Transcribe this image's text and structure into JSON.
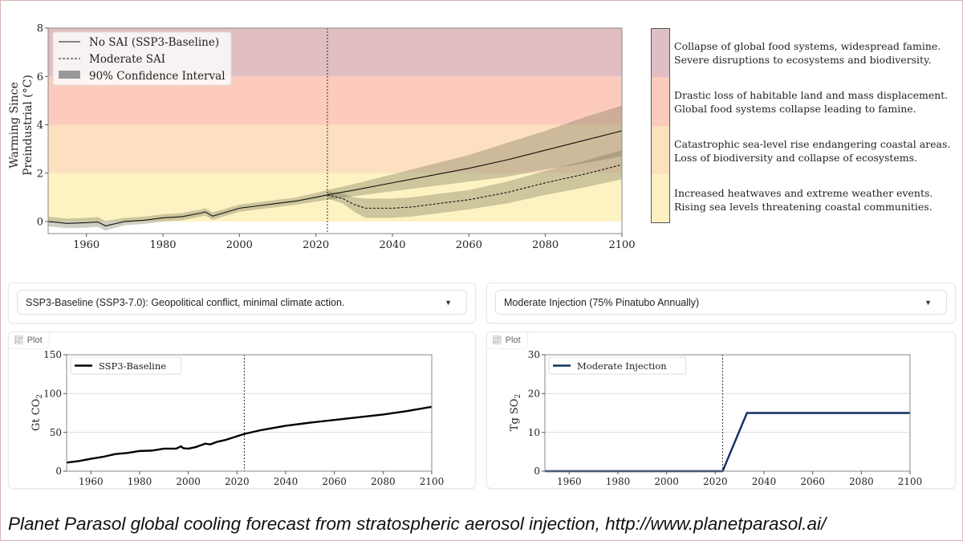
{
  "main_chart": {
    "chart_data": {
      "type": "line",
      "xlim": [
        1950,
        2100
      ],
      "ylim": [
        -0.5,
        8
      ],
      "xticks": [
        "1960",
        "1980",
        "2000",
        "2020",
        "2040",
        "2060",
        "2080",
        "2100"
      ],
      "yticks": [
        "0",
        "2",
        "4",
        "6",
        "8"
      ],
      "ylabel_line1": "Warming Since",
      "ylabel_line2": "Preindustrial (°C)",
      "vline_year": 2023,
      "grid": false,
      "legend_position": "top-left",
      "bands": [
        {
          "from": 0,
          "to": 2,
          "color": "#fdf2c2"
        },
        {
          "from": 2,
          "to": 4,
          "color": "#fde0bf"
        },
        {
          "from": 4,
          "to": 6,
          "color": "#fdcbbd"
        },
        {
          "from": 6,
          "to": 8,
          "color": "#e0bec2"
        }
      ],
      "legend": [
        "No SAI (SSP3-Baseline)",
        "Moderate SAI",
        "90% Confidence Interval"
      ],
      "series": [
        {
          "name": "No SAI (SSP3-Baseline)",
          "style": "solid",
          "x": [
            1950,
            1955,
            1960,
            1963,
            1965,
            1970,
            1975,
            1980,
            1985,
            1990,
            1991,
            1993,
            2000,
            2005,
            2010,
            2015,
            2020,
            2023,
            2030,
            2040,
            2050,
            2060,
            2070,
            2080,
            2090,
            2100
          ],
          "y": [
            0,
            -0.08,
            -0.05,
            -0.02,
            -0.18,
            0,
            0.05,
            0.15,
            0.2,
            0.35,
            0.4,
            0.22,
            0.55,
            0.65,
            0.75,
            0.85,
            1.0,
            1.1,
            1.3,
            1.6,
            1.9,
            2.2,
            2.55,
            2.95,
            3.35,
            3.75
          ],
          "ci_half": [
            0.2,
            0.2,
            0.2,
            0.2,
            0.2,
            0.15,
            0.15,
            0.15,
            0.15,
            0.15,
            0.15,
            0.15,
            0.15,
            0.15,
            0.15,
            0.15,
            0.18,
            0.2,
            0.25,
            0.35,
            0.45,
            0.55,
            0.7,
            0.8,
            0.95,
            1.05
          ]
        },
        {
          "name": "Moderate SAI",
          "style": "dashed",
          "x": [
            2023,
            2027,
            2030,
            2033,
            2040,
            2045,
            2050,
            2060,
            2070,
            2080,
            2090,
            2100
          ],
          "y": [
            1.1,
            0.95,
            0.7,
            0.55,
            0.55,
            0.6,
            0.7,
            0.9,
            1.2,
            1.6,
            1.95,
            2.35
          ],
          "ci_half": [
            0.15,
            0.2,
            0.3,
            0.4,
            0.4,
            0.4,
            0.4,
            0.4,
            0.45,
            0.5,
            0.55,
            0.6
          ]
        }
      ],
      "band_colors": {
        "ci": "#6e6e4e"
      }
    },
    "risk_scale": [
      {
        "line1": "Collapse of global food systems, widespread famine.",
        "line2": "Severe disruptions to ecosystems and biodiversity.",
        "color": "#dfbfc3"
      },
      {
        "line1": "Drastic loss of habitable land and mass displacement.",
        "line2": "Global food systems collapse leading to famine.",
        "color": "#fccbbd"
      },
      {
        "line1": "Catastrophic sea-level rise endangering coastal areas.",
        "line2": "Loss of biodiversity and collapse of ecosystems.",
        "color": "#fde0be"
      },
      {
        "line1": "Increased heatwaves and extreme weather events.",
        "line2": "Rising sea levels threatening coastal communities.",
        "color": "#fdf1c1"
      }
    ]
  },
  "controls": {
    "scenario_select": "SSP3-Baseline (SSP3-7.0): Geopolitical conflict, minimal climate action.",
    "injection_select": "Moderate Injection (75% Pinatubo Annually)"
  },
  "plots": {
    "tag_label": "Plot",
    "co2": {
      "chart_data": {
        "type": "line",
        "xlim": [
          1950,
          2100
        ],
        "ylim": [
          0,
          150
        ],
        "xticks": [
          "1960",
          "1980",
          "2000",
          "2020",
          "2040",
          "2060",
          "2080",
          "2100"
        ],
        "yticks": [
          "0",
          "50",
          "100",
          "150"
        ],
        "ylabel": "Gt CO",
        "ylabel_sub": "2",
        "vline_year": 2023,
        "grid": true,
        "legend_position": "top-left",
        "series": [
          {
            "name": "SSP3-Baseline",
            "color": "#000000",
            "x": [
              1950,
              1955,
              1960,
              1965,
              1970,
              1975,
              1980,
              1985,
              1990,
              1995,
              1997,
              1998,
              2000,
              2003,
              2007,
              2009,
              2012,
              2015,
              2020,
              2023,
              2030,
              2040,
              2050,
              2060,
              2070,
              2080,
              2090,
              2100
            ],
            "y": [
              11,
              13,
              16,
              18.5,
              22,
              23.5,
              26,
              26.5,
              29,
              29,
              32,
              29.5,
              29,
              31,
              35.5,
              34.5,
              38,
              40,
              45,
              48,
              53,
              58.5,
              62.5,
              66,
              69.5,
              73,
              77.5,
              83
            ]
          }
        ]
      }
    },
    "so2": {
      "chart_data": {
        "type": "line",
        "xlim": [
          1950,
          2100
        ],
        "ylim": [
          0,
          30
        ],
        "xticks": [
          "1960",
          "1980",
          "2000",
          "2020",
          "2040",
          "2060",
          "2080",
          "2100"
        ],
        "yticks": [
          "0",
          "10",
          "20",
          "30"
        ],
        "ylabel": "Tg SO",
        "ylabel_sub": "2",
        "vline_year": 2023,
        "grid": true,
        "legend_position": "top-left",
        "series": [
          {
            "name": "Moderate Injection",
            "color": "#0d3160",
            "x": [
              1950,
              2023,
              2033,
              2100
            ],
            "y": [
              0,
              0,
              15,
              15
            ]
          }
        ]
      }
    }
  },
  "caption": "Planet Parasol global cooling forecast from stratospheric aerosol injection, http://www.planetparasol.ai/"
}
